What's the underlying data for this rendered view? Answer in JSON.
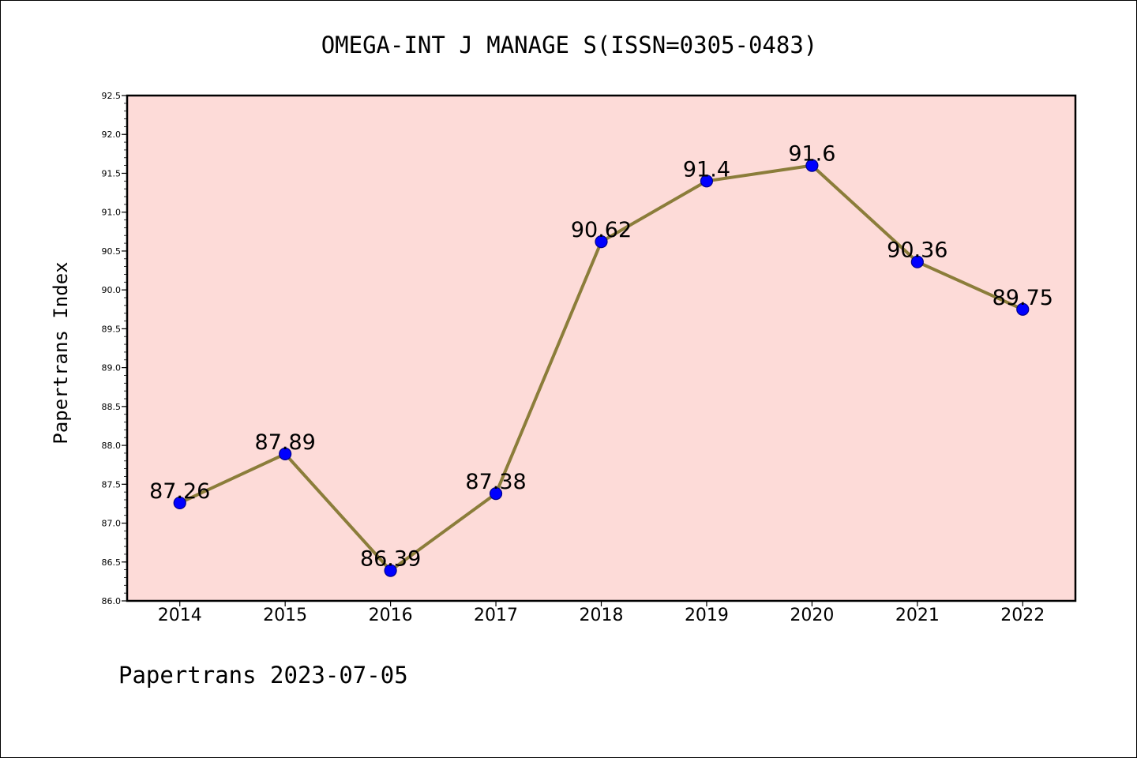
{
  "footer": {
    "text": "Papertrans 2023-07-05"
  },
  "chart_data": {
    "type": "line",
    "title": "OMEGA-INT J MANAGE S(ISSN=0305-0483)",
    "xlabel": "",
    "ylabel": "Papertrans Index",
    "categories": [
      "2014",
      "2015",
      "2016",
      "2017",
      "2018",
      "2019",
      "2020",
      "2021",
      "2022"
    ],
    "series": [
      {
        "values": [
          87.26,
          87.89,
          86.39,
          87.38,
          90.62,
          91.4,
          91.6,
          90.36,
          89.75
        ],
        "data_labels": [
          "87.26",
          "87.89",
          "86.39",
          "87.38",
          "90.62",
          "91.4",
          "91.6",
          "90.36",
          "89.75"
        ]
      }
    ],
    "ylim": [
      86.0,
      92.5
    ],
    "yticks": [
      "86.0",
      "86.5",
      "87.0",
      "87.5",
      "88.0",
      "88.5",
      "89.0",
      "89.5",
      "90.0",
      "90.5",
      "91.0",
      "91.5",
      "92.0",
      "92.5"
    ],
    "grid": false,
    "colors": {
      "plot_background": "#fddbd8",
      "line": "#8b7d3a",
      "marker": "#0000ff",
      "marker_edge": "#00008b"
    }
  }
}
